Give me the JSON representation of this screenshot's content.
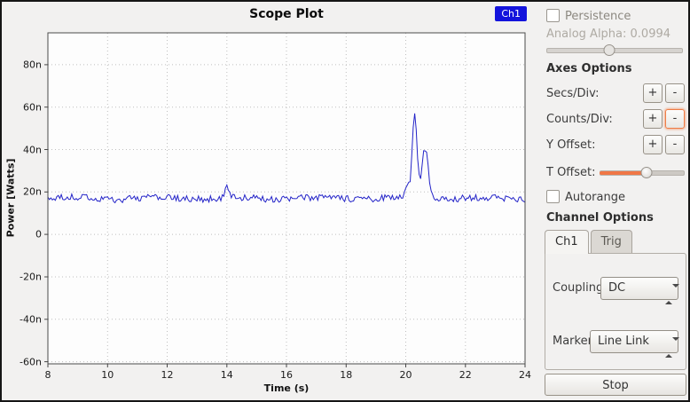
{
  "chart_data": {
    "type": "line",
    "title": "Scope Plot",
    "xlabel": "Time (s)",
    "ylabel": "Power [Watts]",
    "xlim": [
      8,
      24
    ],
    "x_ticks": [
      8,
      10,
      12,
      14,
      16,
      18,
      20,
      22,
      24
    ],
    "y_tick_values": [
      80,
      60,
      40,
      20,
      0,
      -20,
      -40,
      -60
    ],
    "y_tick_labels": [
      "80n",
      "60n",
      "40n",
      "20n",
      "0",
      "-20n",
      "-40n",
      "-60n"
    ],
    "y_unit": "nW",
    "ylim_draw": [
      -61,
      95
    ],
    "grid": "dotted",
    "legend": {
      "label": "Ch1",
      "color": "#1414dc",
      "position": "top-right"
    },
    "series": [
      {
        "name": "Ch1",
        "color": "#2323c8",
        "baseline": 17,
        "noise_amplitude": 1.6,
        "wobble_amplitude": 0.5,
        "seed": 20,
        "sample_step": 0.05,
        "spikes": [
          {
            "x": 14.0,
            "peak": 23,
            "width": 0.07
          },
          {
            "x": 20.05,
            "peak": 24,
            "width": 0.06
          },
          {
            "x": 20.3,
            "peak": 57,
            "width": 0.08
          },
          {
            "x": 20.65,
            "peak": 41,
            "width": 0.1
          }
        ]
      }
    ]
  },
  "panel": {
    "persistence": {
      "label": "Persistence",
      "checked": false
    },
    "analog_alpha": {
      "label": "Analog Alpha: 0.0994",
      "value_pct": 46,
      "enabled": false
    },
    "axes_options": {
      "title": "Axes Options",
      "plus": "+",
      "minus": "-",
      "rows": [
        {
          "label": "Secs/Div:"
        },
        {
          "label": "Counts/Div:"
        },
        {
          "label": "Y Offset:"
        }
      ],
      "t_offset": {
        "label": "T Offset:",
        "value_pct": 55
      }
    },
    "autorange": {
      "label": "Autorange",
      "checked": false
    },
    "channel_options": {
      "title": "Channel Options",
      "tabs": [
        {
          "label": "Ch1",
          "active": true
        },
        {
          "label": "Trig",
          "active": false
        }
      ],
      "coupling": {
        "label": "Coupling:",
        "value": "DC"
      },
      "marker": {
        "label": "Marker:",
        "value": "Line Link"
      }
    },
    "stop_button": "Stop",
    "accent_color": "#f07746"
  }
}
